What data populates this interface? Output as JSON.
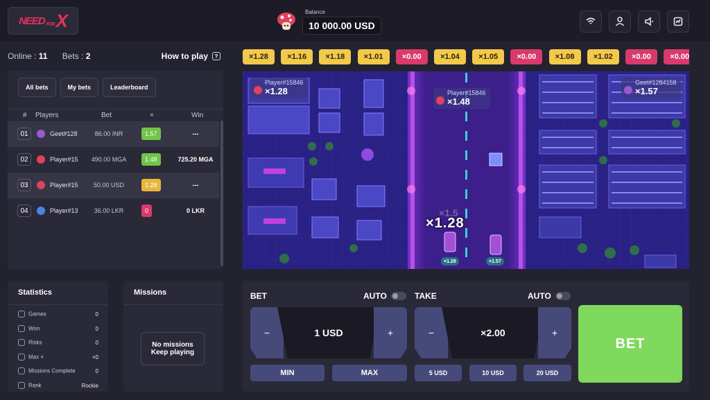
{
  "header": {
    "logo_text_1": "NEED",
    "logo_text_2": "FOR",
    "logo_text_3": "X",
    "balance_label": "Balance",
    "balance_value": "10 000.00 USD"
  },
  "top_icons": [
    "wifi-icon",
    "user-icon",
    "sound-icon",
    "history-icon"
  ],
  "summary": {
    "online_label": "Online :",
    "online_value": "11",
    "bets_label": "Bets :",
    "bets_value": "2",
    "how_to_play": "How to play",
    "help_glyph": "?"
  },
  "bets_panel": {
    "tabs": [
      "All bets",
      "My bets",
      "Leaderboard"
    ],
    "columns": [
      "#",
      "Players",
      "Bet",
      "×",
      "Win"
    ],
    "rows": [
      {
        "num": "01",
        "name": "Geet",
        "tag": "#128",
        "bet": "86.00 INR",
        "mult": "1.57",
        "mult_color": "#71c44a",
        "win": "---",
        "avatar_color": "#9b59d0"
      },
      {
        "num": "02",
        "name": "Player",
        "tag": "#15",
        "bet": "490.00 MGA",
        "mult": "1.48",
        "mult_color": "#71c44a",
        "win": "725.20 MGA",
        "avatar_color": "#e0415c"
      },
      {
        "num": "03",
        "name": "Player",
        "tag": "#15",
        "bet": "50.00 USD",
        "mult": "1.28",
        "mult_color": "#e6b73c",
        "win": "---",
        "avatar_color": "#e0415c"
      },
      {
        "num": "04",
        "name": "Player",
        "tag": "#13",
        "bet": "36.00 LKR",
        "mult": "0",
        "mult_color": "#d83a6c",
        "win": "0 LKR",
        "avatar_color": "#4a86e0"
      }
    ]
  },
  "statistics": {
    "title": "Statistics",
    "items": [
      {
        "label": "Games",
        "value": "0",
        "icon": "gamepad-icon"
      },
      {
        "label": "Won",
        "value": "0",
        "icon": "trophy-icon"
      },
      {
        "label": "Risks",
        "value": "0",
        "icon": "lightning-icon"
      },
      {
        "label": "Max ×",
        "value": "×0",
        "icon": "speedometer-icon"
      },
      {
        "label": "Missions Complete",
        "value": "0",
        "icon": "target-icon"
      },
      {
        "label": "Rank",
        "value": "Rockie",
        "icon": "rank-icon"
      }
    ]
  },
  "missions": {
    "title": "Missions",
    "empty_line_1": "No missions",
    "empty_line_2": "Keep playing"
  },
  "multiplier_history": [
    {
      "value": "×1.28",
      "color": "y"
    },
    {
      "value": "×1.16",
      "color": "y"
    },
    {
      "value": "×1.18",
      "color": "y"
    },
    {
      "value": "×1.01",
      "color": "y"
    },
    {
      "value": "×0.00",
      "color": "r"
    },
    {
      "value": "×1.04",
      "color": "y"
    },
    {
      "value": "×1.05",
      "color": "y"
    },
    {
      "value": "×0.00",
      "color": "r"
    },
    {
      "value": "×1.08",
      "color": "y"
    },
    {
      "value": "×1.02",
      "color": "y"
    },
    {
      "value": "×0.00",
      "color": "r"
    },
    {
      "value": "×0.00",
      "color": "r"
    }
  ],
  "game": {
    "player_labels": [
      {
        "name": "Player#15846",
        "mult": "×1.28"
      },
      {
        "name": "Player#15846",
        "mult": "×1.48"
      },
      {
        "name": "Geet#1284158",
        "mult": "×1.57"
      }
    ],
    "current_multiplier": "×1.28",
    "ghost_multiplier": "×1.5",
    "car_tags": [
      "×1.28",
      "×1.57"
    ]
  },
  "controls": {
    "bet_label": "BET",
    "take_label": "TAKE",
    "auto_label": "AUTO",
    "bet_value": "1 USD",
    "take_value": "×2.00",
    "minus": "−",
    "plus": "+",
    "min_label": "MIN",
    "max_label": "MAX",
    "quick_amounts": [
      "5 USD",
      "10 USD",
      "20 USD"
    ],
    "bet_button": "BET"
  },
  "colors": {
    "accent_green": "#7fd95c",
    "chip_yellow": "#f2c94a",
    "chip_red": "#d83a6c",
    "brand_red": "#e8325a"
  }
}
